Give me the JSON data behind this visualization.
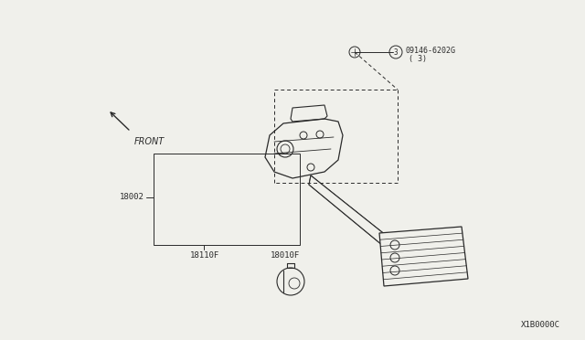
{
  "bg_color": "#f0f0eb",
  "line_color": "#2a2a2a",
  "watermark": "X1B0000C",
  "label_18002": "18002",
  "label_18110F": "18110F",
  "label_18010F": "18010F",
  "label_part": "09146-6202G",
  "label_part_sub": "( 3)",
  "label_front": "FRONT",
  "font_size_labels": 6.5,
  "font_size_watermark": 6.5
}
